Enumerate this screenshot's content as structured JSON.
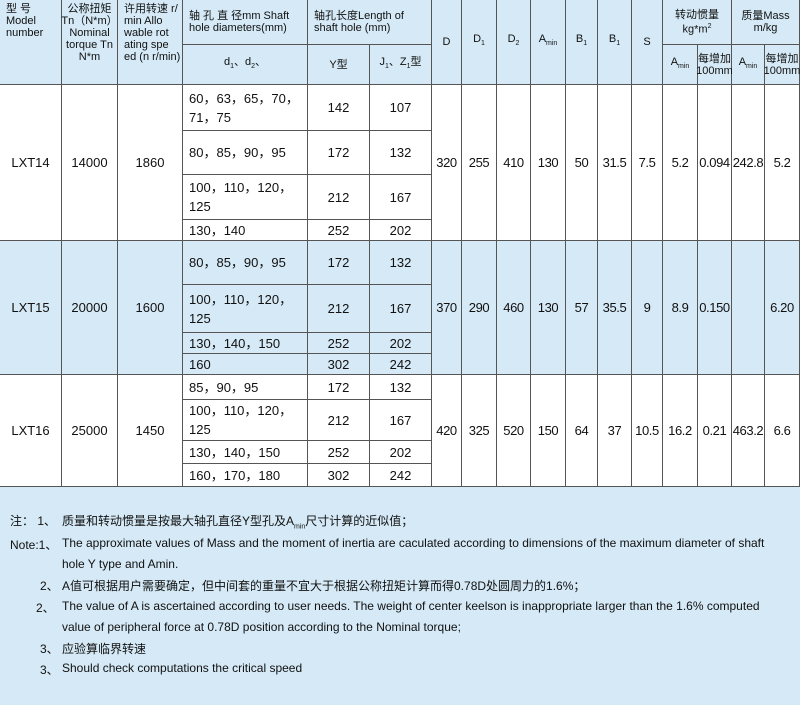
{
  "header": {
    "model": [
      "型 号",
      "Model",
      "number"
    ],
    "torque": [
      "公称扭矩",
      "Tn（N*m）",
      "Nominal",
      "torque Tn",
      "N*m"
    ],
    "speed": [
      "许用转速 r/",
      "min  Allo",
      "wable rot",
      "ating spe",
      "ed (n r/min)"
    ],
    "shaft_diameter": [
      "轴 孔 直 径mm Shaft",
      "hole diameters(mm)"
    ],
    "shaft_diameter_sub": [
      [
        "d",
        {
          "sub": "1"
        },
        "、d",
        {
          "sub": "2"
        },
        "、"
      ]
    ],
    "hole_length": [
      "轴孔长度Length of",
      "shaft hole (mm)"
    ],
    "y_type": [
      "Y型"
    ],
    "j_type": [
      [
        "J",
        {
          "sub": "1"
        },
        "、Z",
        {
          "sub": "1"
        },
        "型"
      ]
    ],
    "dims": [
      [
        "D"
      ],
      [
        [
          "D",
          {
            "sub": "1"
          }
        ]
      ],
      [
        [
          "D",
          {
            "sub": "2"
          }
        ]
      ],
      [
        [
          "A",
          {
            "sub": "min"
          }
        ]
      ],
      [
        [
          "B",
          {
            "sub": "1"
          }
        ]
      ],
      [
        [
          "B",
          {
            "sub": "1"
          }
        ]
      ],
      [
        "S"
      ]
    ],
    "inertia": [
      "转动惯量",
      [
        "kg*m",
        {
          "sup": "2"
        }
      ]
    ],
    "inertia_amin": [
      [
        "A",
        {
          "sub": "min"
        }
      ]
    ],
    "inertia_per100": [
      "每增加",
      "100mm"
    ],
    "mass": [
      "质量Mass",
      "m/kg"
    ],
    "mass_amin": [
      [
        "A",
        {
          "sub": "min"
        }
      ]
    ],
    "mass_per100": [
      "每增加",
      "100mm"
    ]
  },
  "groups": [
    {
      "model": "LXT14",
      "torque": "14000",
      "speed": "1860",
      "rows": [
        {
          "d": "60，63，65，70，71，75",
          "y": "142",
          "j": "107"
        },
        {
          "d": "80，85，90，95",
          "y": "172",
          "j": "132"
        },
        {
          "d": "100，110，120，125",
          "y": "212",
          "j": "167"
        },
        {
          "d": "130，140",
          "y": "252",
          "j": "202"
        }
      ],
      "dims": [
        "320",
        "255",
        "410",
        "130",
        "50",
        "31.5",
        "7.5",
        "5.2",
        "0.094",
        "242.8",
        "5.2"
      ]
    },
    {
      "model": "LXT15",
      "torque": "20000",
      "speed": "1600",
      "rows": [
        {
          "d": "80，85，90，95",
          "y": "172",
          "j": "132"
        },
        {
          "d": "100，110，120，125",
          "y": "212",
          "j": "167"
        },
        {
          "d": "130，140，150",
          "y": "252",
          "j": "202"
        },
        {
          "d": "160",
          "y": "302",
          "j": "242"
        }
      ],
      "dims": [
        "370",
        "290",
        "460",
        "130",
        "57",
        "35.5",
        "9",
        "8.9",
        "0.150",
        null,
        "6.20"
      ]
    },
    {
      "model": "LXT16",
      "torque": "25000",
      "speed": "1450",
      "rows": [
        {
          "d": "85，90，95",
          "y": "172",
          "j": "132"
        },
        {
          "d": "100，110，120，125",
          "y": "212",
          "j": "167"
        },
        {
          "d": "130，140，150",
          "y": "252",
          "j": "202"
        },
        {
          "d": "160，170，180",
          "y": "302",
          "j": "242"
        }
      ],
      "dims": [
        "420",
        "325",
        "520",
        "150",
        "64",
        "37",
        "10.5",
        "16.2",
        "0.21",
        "463.2",
        "6.6"
      ]
    }
  ],
  "notes": [
    {
      "label": "注： 1、",
      "lines": [
        [
          "质量和转动惯量是按最大轴孔直径Y型孔及A",
          {
            "sub": "min"
          },
          "尺寸计算的近似值；"
        ]
      ]
    },
    {
      "label": "Note:1、",
      "lines": [
        "The approximate values of Mass and the moment of inertia are caculated according to dimensions of the maximum diameter of shaft",
        "hole Y type and Amin."
      ]
    },
    {
      "label": "2、",
      "lines": [
        "A值可根据用户需要确定，但中间套的重量不宜大于根据公称扭矩计算而得0.78D处圆周力的1.6%；"
      ]
    },
    {
      "label": "2、",
      "lines": [
        "The value of A is ascertained according to user needs. The weight of center keelson is inappropriate larger than the 1.6% computed",
        "value of peripheral force at 0.78D position according to the Nominal torque;"
      ]
    },
    {
      "label": "3、",
      "lines": [
        "应验算临界转速"
      ]
    },
    {
      "label": "3、",
      "lines": [
        "Should check computations the critical speed"
      ]
    }
  ]
}
